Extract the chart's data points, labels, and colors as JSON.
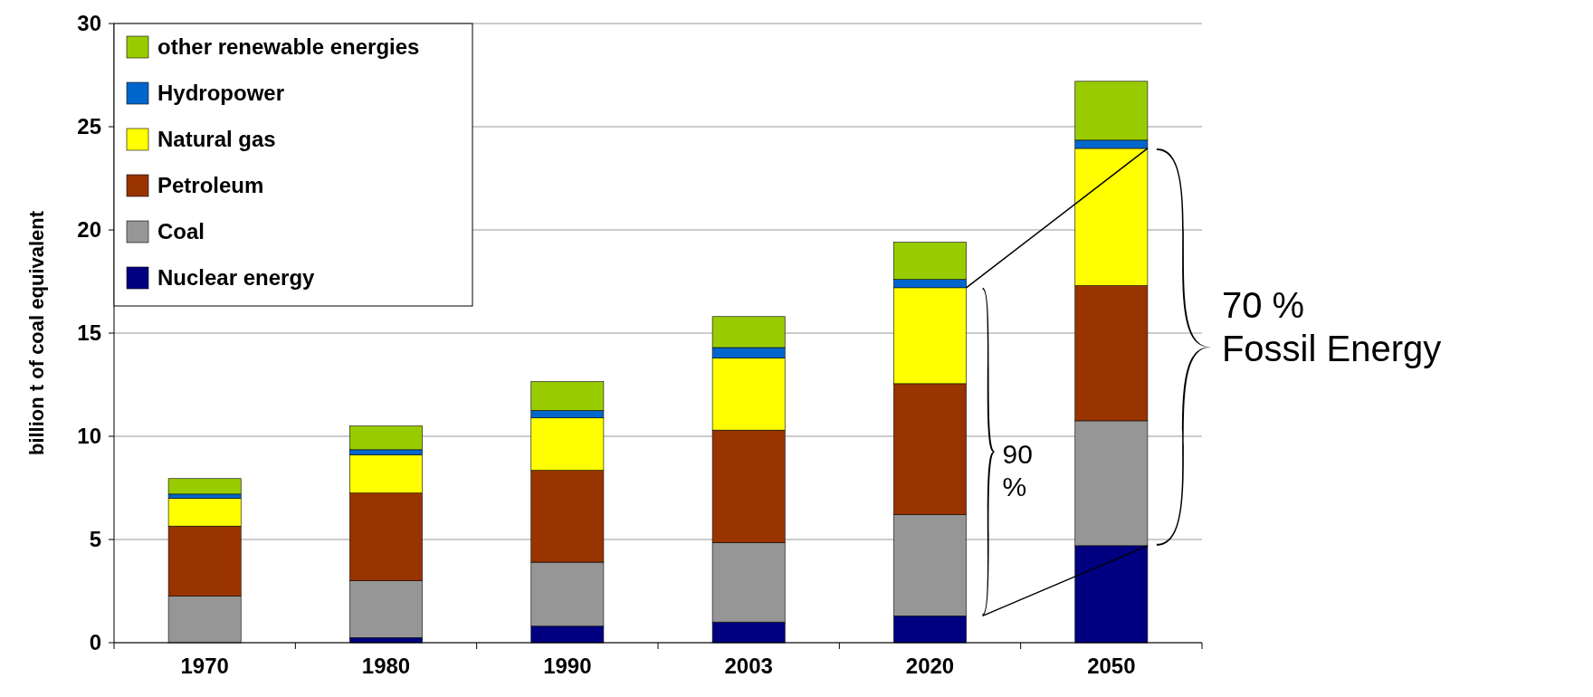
{
  "chart_data": {
    "type": "bar",
    "stacked": true,
    "ylabel": "billion t of coal equivalent",
    "categories": [
      "1970",
      "1980",
      "1990",
      "2003",
      "2020",
      "2050"
    ],
    "series": [
      {
        "name": "Nuclear energy",
        "color": "#000080",
        "values": [
          null,
          0.25,
          0.8,
          1.0,
          1.3,
          4.7
        ]
      },
      {
        "name": "Coal",
        "color": "#969696",
        "values": [
          2.25,
          2.75,
          3.1,
          3.85,
          4.9,
          6.05
        ]
      },
      {
        "name": "Petroleum",
        "color": "#993300",
        "values": [
          3.4,
          4.25,
          4.45,
          5.45,
          6.35,
          6.55
        ]
      },
      {
        "name": "Natural gas",
        "color": "#ffff00",
        "values": [
          1.35,
          1.85,
          2.55,
          3.5,
          4.65,
          6.65
        ]
      },
      {
        "name": "Hydropower",
        "color": "#0066cc",
        "values": [
          0.2,
          0.25,
          0.35,
          0.5,
          0.4,
          0.4
        ]
      },
      {
        "name": "other renewable energies",
        "color": "#99cc00",
        "values": [
          0.75,
          1.15,
          1.4,
          1.5,
          1.8,
          2.85
        ]
      }
    ],
    "ylim": [
      0,
      30
    ],
    "yticks": [
      0,
      5,
      10,
      15,
      20,
      25,
      30
    ],
    "grid": "y",
    "legend": "top left",
    "annotations": [
      "90\n%",
      "70 %\nFossil Energy"
    ]
  }
}
